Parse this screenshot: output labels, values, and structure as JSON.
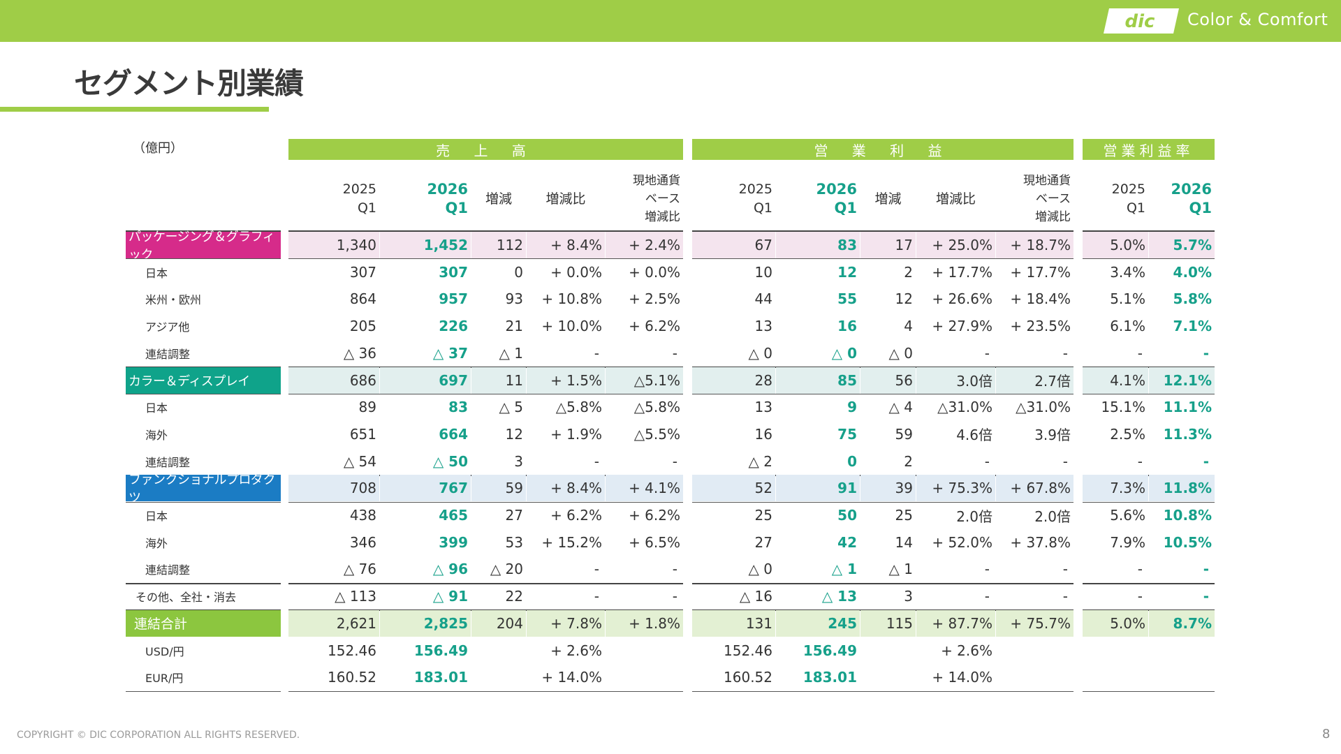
{
  "brand": {
    "logo_text": "dic",
    "tagline": "Color & Comfort",
    "bar_color": "#9fcd47",
    "accent_value_color": "#16a08a"
  },
  "title": "セグメント別業績",
  "unit": "（億円）",
  "groups": {
    "sales": "売 上 高",
    "op": "営 業 利 益",
    "margin": "営業利益率"
  },
  "headers": {
    "y2025": [
      "2025",
      "Q1"
    ],
    "y2026": [
      "2026",
      "Q1"
    ],
    "change": "増減",
    "change_rate": "増減比",
    "local": [
      "現地通貨",
      "ベース",
      "増減比"
    ]
  },
  "segment_colors": {
    "pink": "#d62b8a",
    "teal": "#0fa38a",
    "blue": "#1b7cc4",
    "green": "#8cc63f"
  },
  "rows": [
    {
      "label": "パッケージング＆グラフィック",
      "type": "seg",
      "color": "pink",
      "values": [
        "1,340",
        "1,452",
        "112",
        "+ 8.4%",
        "+ 2.4%",
        "67",
        "83",
        "17",
        "+ 25.0%",
        "+ 18.7%",
        "5.0%",
        "5.7%"
      ]
    },
    {
      "label": "日本",
      "type": "sub",
      "values": [
        "307",
        "307",
        "0",
        "+ 0.0%",
        "+ 0.0%",
        "10",
        "12",
        "2",
        "+ 17.7%",
        "+ 17.7%",
        "3.4%",
        "4.0%"
      ]
    },
    {
      "label": "米州・欧州",
      "type": "sub",
      "values": [
        "864",
        "957",
        "93",
        "+ 10.8%",
        "+ 2.5%",
        "44",
        "55",
        "12",
        "+ 26.6%",
        "+ 18.4%",
        "5.1%",
        "5.8%"
      ]
    },
    {
      "label": "アジア他",
      "type": "sub",
      "values": [
        "205",
        "226",
        "21",
        "+ 10.0%",
        "+ 6.2%",
        "13",
        "16",
        "4",
        "+ 27.9%",
        "+ 23.5%",
        "6.1%",
        "7.1%"
      ]
    },
    {
      "label": "連結調整",
      "type": "sub",
      "values": [
        "△ 36",
        "△ 37",
        "△ 1",
        "-",
        "-",
        "△ 0",
        "△ 0",
        "△ 0",
        "-",
        "-",
        "-",
        "-"
      ]
    },
    {
      "label": "カラー＆ディスプレイ",
      "type": "seg",
      "color": "teal",
      "values": [
        "686",
        "697",
        "11",
        "+ 1.5%",
        "△5.1%",
        "28",
        "85",
        "56",
        "3.0倍",
        "2.7倍",
        "4.1%",
        "12.1%"
      ]
    },
    {
      "label": "日本",
      "type": "sub",
      "values": [
        "89",
        "83",
        "△ 5",
        "△5.8%",
        "△5.8%",
        "13",
        "9",
        "△ 4",
        "△31.0%",
        "△31.0%",
        "15.1%",
        "11.1%"
      ]
    },
    {
      "label": "海外",
      "type": "sub",
      "values": [
        "651",
        "664",
        "12",
        "+ 1.9%",
        "△5.5%",
        "16",
        "75",
        "59",
        "4.6倍",
        "3.9倍",
        "2.5%",
        "11.3%"
      ]
    },
    {
      "label": "連結調整",
      "type": "sub",
      "values": [
        "△ 54",
        "△ 50",
        "3",
        "-",
        "-",
        "△ 2",
        "0",
        "2",
        "-",
        "-",
        "-",
        "-"
      ]
    },
    {
      "label": "ファンクショナルプロダクツ",
      "type": "seg",
      "color": "blue",
      "values": [
        "708",
        "767",
        "59",
        "+ 8.4%",
        "+ 4.1%",
        "52",
        "91",
        "39",
        "+ 75.3%",
        "+ 67.8%",
        "7.3%",
        "11.8%"
      ]
    },
    {
      "label": "日本",
      "type": "sub",
      "values": [
        "438",
        "465",
        "27",
        "+ 6.2%",
        "+ 6.2%",
        "25",
        "50",
        "25",
        "2.0倍",
        "2.0倍",
        "5.6%",
        "10.8%"
      ]
    },
    {
      "label": "海外",
      "type": "sub",
      "values": [
        "346",
        "399",
        "53",
        "+ 15.2%",
        "+ 6.5%",
        "27",
        "42",
        "14",
        "+ 52.0%",
        "+ 37.8%",
        "7.9%",
        "10.5%"
      ]
    },
    {
      "label": "連結調整",
      "type": "sub",
      "values": [
        "△ 76",
        "△ 96",
        "△ 20",
        "-",
        "-",
        "△ 0",
        "△ 1",
        "△ 1",
        "-",
        "-",
        "-",
        "-"
      ]
    },
    {
      "label": "その他、全社・消去",
      "type": "other",
      "values": [
        "△ 113",
        "△ 91",
        "22",
        "-",
        "-",
        "△ 16",
        "△ 13",
        "3",
        "-",
        "-",
        "-",
        "-"
      ]
    },
    {
      "label": "連結合計",
      "type": "total",
      "values": [
        "2,621",
        "2,825",
        "204",
        "+ 7.8%",
        "+ 1.8%",
        "131",
        "245",
        "115",
        "+ 87.7%",
        "+ 75.7%",
        "5.0%",
        "8.7%"
      ]
    },
    {
      "label": "USD/円",
      "type": "sub",
      "values": [
        "152.46",
        "156.49",
        "",
        "+ 2.6%",
        "",
        "152.46",
        "156.49",
        "",
        "+ 2.6%",
        "",
        "",
        ""
      ]
    },
    {
      "label": "EUR/円",
      "type": "sub",
      "values": [
        "160.52",
        "183.01",
        "",
        "+ 14.0%",
        "",
        "160.52",
        "183.01",
        "",
        "+ 14.0%",
        "",
        "",
        ""
      ]
    }
  ],
  "footer": {
    "copyright": "COPYRIGHT © DIC CORPORATION ALL RIGHTS RESERVED.",
    "page_number": "8"
  }
}
